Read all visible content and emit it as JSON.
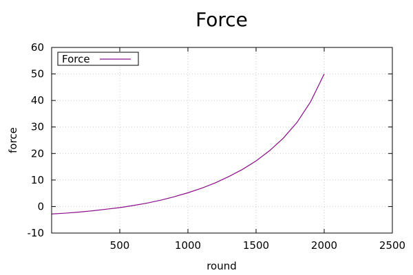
{
  "chart_data": {
    "type": "line",
    "title": "Force",
    "xlabel": "round",
    "ylabel": "force",
    "xlim": [
      0,
      2500
    ],
    "ylim": [
      -10,
      60
    ],
    "xticks": [
      500,
      1000,
      1500,
      2000,
      2500
    ],
    "xtick_labels": [
      "500",
      "1000",
      "1500",
      "2000",
      "2500"
    ],
    "yticks": [
      -10,
      0,
      10,
      20,
      30,
      40,
      50,
      60
    ],
    "ytick_labels": [
      "-10",
      "0",
      "10",
      "20",
      "30",
      "40",
      "50",
      "60"
    ],
    "grid": true,
    "legend": {
      "position": "top-left",
      "entries": [
        "Force"
      ]
    },
    "series": [
      {
        "name": "Force",
        "color": "#8b0a8b",
        "x": [
          0,
          100,
          200,
          300,
          400,
          500,
          600,
          700,
          800,
          900,
          1000,
          1100,
          1200,
          1300,
          1400,
          1500,
          1600,
          1700,
          1800,
          1900,
          2000
        ],
        "y": [
          -2.8,
          -2.5,
          -2.1,
          -1.6,
          -1.0,
          -0.4,
          0.4,
          1.3,
          2.4,
          3.7,
          5.2,
          6.9,
          8.9,
          11.3,
          14.0,
          17.2,
          21.1,
          25.8,
          31.7,
          39.5,
          50.0
        ]
      }
    ]
  }
}
